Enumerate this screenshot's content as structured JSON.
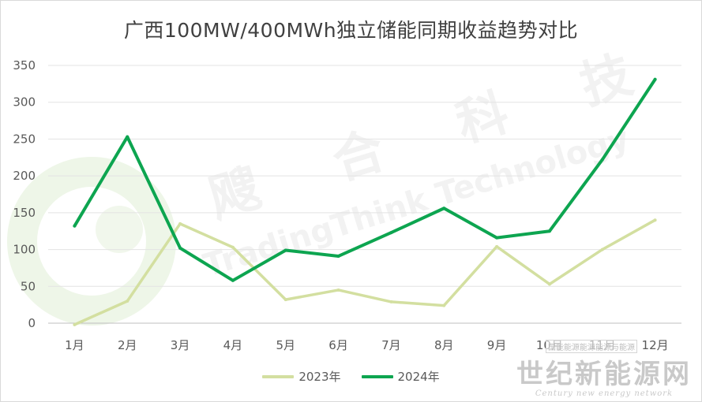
{
  "chart_data": {
    "type": "line",
    "title": "广西100MW/400MWh独立储能同期收益趋势对比",
    "categories": [
      "1月",
      "2月",
      "3月",
      "4月",
      "5月",
      "6月",
      "7月",
      "8月",
      "9月",
      "10月",
      "11月",
      "12月"
    ],
    "ylim": [
      0,
      350
    ],
    "yticks": [
      0,
      50,
      100,
      150,
      200,
      250,
      300,
      350
    ],
    "grid": true,
    "legend_position": "bottom",
    "series": [
      {
        "name": "2023年",
        "color": "#d3dfa0",
        "values": [
          -2,
          30,
          135,
          103,
          32,
          45,
          29,
          24,
          104,
          53,
          100,
          140
        ]
      },
      {
        "name": "2024年",
        "color": "#0da550",
        "values": [
          132,
          253,
          102,
          58,
          99,
          91,
          123,
          156,
          116,
          125,
          222,
          331
        ]
      }
    ]
  },
  "watermark": {
    "brand_cn": "飕合科技",
    "brand_en": "TradingThink Technology",
    "corner_name": "世纪新能源网",
    "corner_en": "Century new energy network",
    "corner_note": "国能能源能源能源与能源"
  }
}
